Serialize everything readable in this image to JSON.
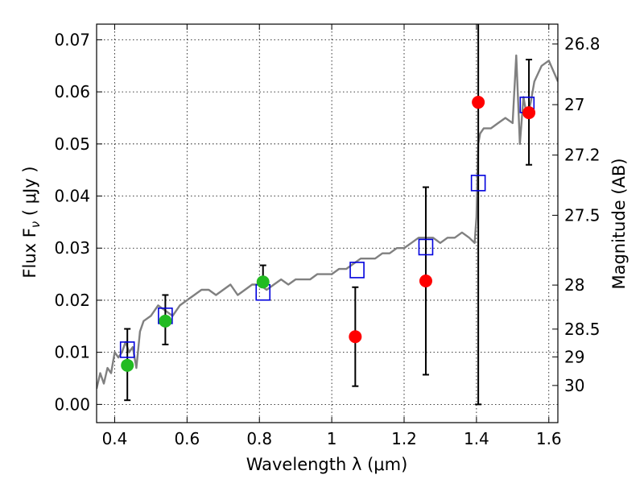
{
  "chart_data": {
    "type": "scatter",
    "xlabel": "Wavelength  λ (μm)",
    "ylabel": "Flux  F",
    "ylabel_sub": "ν",
    "ylabel_unit": "  ( μJy )",
    "ylabel_right": "Magnitude (AB)",
    "xlim": [
      0.35,
      1.625
    ],
    "ylim": [
      -0.0035,
      0.073
    ],
    "grid": true,
    "x_ticks": [
      {
        "value": 0.4,
        "label": "0.4"
      },
      {
        "value": 0.6,
        "label": "0.6"
      },
      {
        "value": 0.8,
        "label": "0.8"
      },
      {
        "value": 1.0,
        "label": "1"
      },
      {
        "value": 1.2,
        "label": "1.2"
      },
      {
        "value": 1.4,
        "label": "1.4"
      },
      {
        "value": 1.6,
        "label": "1.6"
      }
    ],
    "y_ticks": [
      {
        "value": 0.0,
        "label": "0.00"
      },
      {
        "value": 0.01,
        "label": "0.01"
      },
      {
        "value": 0.02,
        "label": "0.02"
      },
      {
        "value": 0.03,
        "label": "0.03"
      },
      {
        "value": 0.04,
        "label": "0.04"
      },
      {
        "value": 0.05,
        "label": "0.05"
      },
      {
        "value": 0.06,
        "label": "0.06"
      },
      {
        "value": 0.07,
        "label": "0.07"
      }
    ],
    "y_right_ticks": [
      {
        "value": 26.8,
        "label": "26.8"
      },
      {
        "value": 27.0,
        "label": "27"
      },
      {
        "value": 27.2,
        "label": "27.2"
      },
      {
        "value": 27.5,
        "label": "27.5"
      },
      {
        "value": 28.0,
        "label": "28"
      },
      {
        "value": 28.5,
        "label": "28.5"
      },
      {
        "value": 29.0,
        "label": "29"
      },
      {
        "value": 30.0,
        "label": "30"
      }
    ],
    "series": [
      {
        "kind": "line",
        "color": "#808080",
        "x": [
          0.35,
          0.36,
          0.37,
          0.38,
          0.39,
          0.4,
          0.41,
          0.42,
          0.43,
          0.44,
          0.45,
          0.46,
          0.47,
          0.48,
          0.5,
          0.52,
          0.54,
          0.56,
          0.58,
          0.6,
          0.62,
          0.64,
          0.66,
          0.68,
          0.7,
          0.72,
          0.74,
          0.76,
          0.78,
          0.8,
          0.82,
          0.84,
          0.86,
          0.88,
          0.9,
          0.92,
          0.94,
          0.96,
          0.98,
          1.0,
          1.02,
          1.04,
          1.06,
          1.08,
          1.1,
          1.12,
          1.14,
          1.16,
          1.18,
          1.2,
          1.22,
          1.24,
          1.26,
          1.28,
          1.3,
          1.32,
          1.34,
          1.36,
          1.38,
          1.395,
          1.4,
          1.405,
          1.41,
          1.42,
          1.44,
          1.46,
          1.48,
          1.5,
          1.51,
          1.52,
          1.53,
          1.54,
          1.55,
          1.56,
          1.58,
          1.6,
          1.625
        ],
        "values": [
          0.003,
          0.006,
          0.004,
          0.007,
          0.006,
          0.01,
          0.009,
          0.01,
          0.012,
          0.01,
          0.011,
          0.007,
          0.014,
          0.016,
          0.017,
          0.019,
          0.018,
          0.017,
          0.019,
          0.02,
          0.021,
          0.022,
          0.022,
          0.021,
          0.022,
          0.023,
          0.021,
          0.022,
          0.023,
          0.023,
          0.022,
          0.023,
          0.024,
          0.023,
          0.024,
          0.024,
          0.024,
          0.025,
          0.025,
          0.025,
          0.026,
          0.026,
          0.027,
          0.028,
          0.028,
          0.028,
          0.029,
          0.029,
          0.03,
          0.03,
          0.031,
          0.032,
          0.032,
          0.032,
          0.031,
          0.032,
          0.032,
          0.033,
          0.032,
          0.031,
          0.036,
          0.05,
          0.052,
          0.053,
          0.053,
          0.054,
          0.055,
          0.054,
          0.067,
          0.05,
          0.059,
          0.055,
          0.058,
          0.062,
          0.065,
          0.066,
          0.062
        ]
      },
      {
        "kind": "points",
        "color": "#22bb22",
        "x": [
          0.435,
          0.54,
          0.81
        ],
        "values": [
          0.0075,
          0.016,
          0.0235
        ],
        "err_low": [
          0.0067,
          0.0045,
          0.0
        ],
        "err_high": [
          0.007,
          0.005,
          0.0032
        ]
      },
      {
        "kind": "points",
        "color": "#ff0000",
        "x": [
          1.065,
          1.26,
          1.405,
          1.545
        ],
        "values": [
          0.013,
          0.0237,
          0.058,
          0.056
        ],
        "err_low": [
          0.0095,
          0.018,
          0.058,
          0.01
        ],
        "err_high": [
          0.0095,
          0.018,
          0.02,
          0.0102
        ]
      },
      {
        "kind": "squares",
        "color": "#0000dd",
        "x": [
          0.435,
          0.54,
          0.81,
          1.07,
          1.26,
          1.405,
          1.54
        ],
        "values": [
          0.0105,
          0.017,
          0.0215,
          0.0258,
          0.0302,
          0.0425,
          0.0575
        ]
      }
    ]
  }
}
